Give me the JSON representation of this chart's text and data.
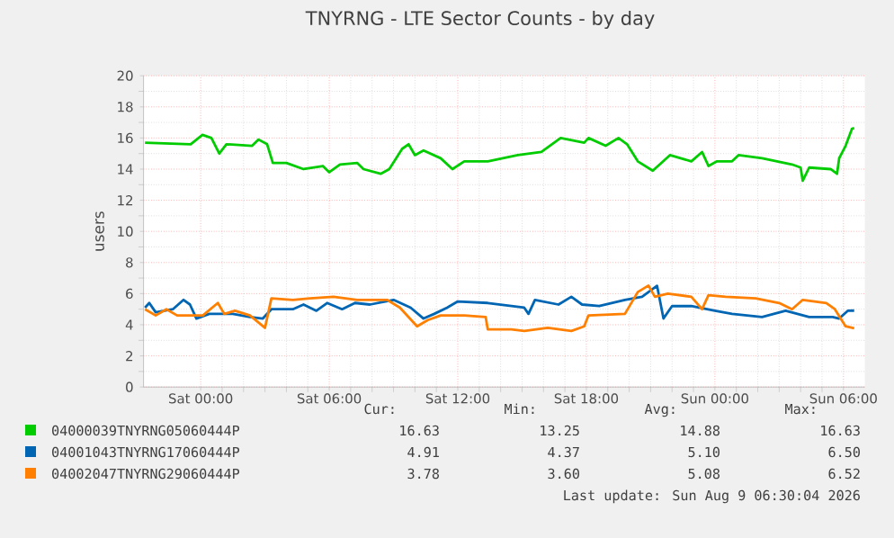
{
  "chart_data": {
    "type": "line",
    "title": "TNYRNG - LTE Sector Counts - by day",
    "ylabel": "users",
    "xlim": [
      "2026-08-07T21:20",
      "2026-08-09T07:00"
    ],
    "ylim": [
      0,
      20
    ],
    "xticks": [
      {
        "value": "2026-08-08T00:00",
        "label": "Sat 00:00"
      },
      {
        "value": "2026-08-08T06:00",
        "label": "Sat 06:00"
      },
      {
        "value": "2026-08-08T12:00",
        "label": "Sat 12:00"
      },
      {
        "value": "2026-08-08T18:00",
        "label": "Sat 18:00"
      },
      {
        "value": "2026-08-09T00:00",
        "label": "Sun 00:00"
      },
      {
        "value": "2026-08-09T06:00",
        "label": "Sun 06:00"
      }
    ],
    "yticks": [
      0,
      2,
      4,
      6,
      8,
      10,
      12,
      14,
      16,
      18,
      20
    ],
    "grid": true,
    "legend": "bottom",
    "marker": "none",
    "line_style": "solid",
    "series": [
      {
        "name": "04000039TNYRNG05060444P",
        "color": "#00cc00",
        "x": [
          "2026-08-07T21:24",
          "2026-08-07T23:32",
          "2026-08-08T00:05",
          "2026-08-08T00:30",
          "2026-08-08T00:52",
          "2026-08-08T01:12",
          "2026-08-08T02:24",
          "2026-08-08T02:42",
          "2026-08-08T03:06",
          "2026-08-08T03:22",
          "2026-08-08T04:00",
          "2026-08-08T04:48",
          "2026-08-08T05:42",
          "2026-08-08T06:00",
          "2026-08-08T06:30",
          "2026-08-08T07:18",
          "2026-08-08T07:36",
          "2026-08-08T08:24",
          "2026-08-08T08:48",
          "2026-08-08T09:24",
          "2026-08-08T09:42",
          "2026-08-08T10:00",
          "2026-08-08T10:24",
          "2026-08-08T11:12",
          "2026-08-08T11:45",
          "2026-08-08T12:18",
          "2026-08-08T13:24",
          "2026-08-08T14:48",
          "2026-08-08T15:54",
          "2026-08-08T16:48",
          "2026-08-08T17:54",
          "2026-08-08T18:06",
          "2026-08-08T18:54",
          "2026-08-08T19:30",
          "2026-08-08T19:54",
          "2026-08-08T20:24",
          "2026-08-08T21:06",
          "2026-08-08T21:54",
          "2026-08-08T22:54",
          "2026-08-08T23:24",
          "2026-08-08T23:42",
          "2026-08-09T00:06",
          "2026-08-09T00:48",
          "2026-08-09T01:06",
          "2026-08-09T02:12",
          "2026-08-09T03:36",
          "2026-08-09T04:00",
          "2026-08-09T04:06",
          "2026-08-09T04:24",
          "2026-08-09T05:24",
          "2026-08-09T05:42",
          "2026-08-09T05:48",
          "2026-08-09T06:06",
          "2026-08-09T06:24",
          "2026-08-09T06:30"
        ],
        "values": [
          15.7,
          15.6,
          16.2,
          16.0,
          15.0,
          15.6,
          15.5,
          15.9,
          15.6,
          14.4,
          14.4,
          14.0,
          14.2,
          13.8,
          14.3,
          14.4,
          14.0,
          13.7,
          14.0,
          15.3,
          15.6,
          14.9,
          15.2,
          14.7,
          14.0,
          14.5,
          14.5,
          14.9,
          15.1,
          16.0,
          15.7,
          16.0,
          15.5,
          16.0,
          15.6,
          14.5,
          13.9,
          14.9,
          14.5,
          15.1,
          14.2,
          14.5,
          14.5,
          14.9,
          14.7,
          14.3,
          14.1,
          13.25,
          14.1,
          14.0,
          13.7,
          14.7,
          15.5,
          16.6,
          16.63
        ]
      },
      {
        "name": "04001043TNYRNG17060444P",
        "color": "#0066b3",
        "x": [
          "2026-08-07T21:24",
          "2026-08-07T21:36",
          "2026-08-07T21:54",
          "2026-08-07T22:42",
          "2026-08-07T23:12",
          "2026-08-07T23:30",
          "2026-08-07T23:48",
          "2026-08-08T00:24",
          "2026-08-08T01:30",
          "2026-08-08T02:18",
          "2026-08-08T02:54",
          "2026-08-08T03:18",
          "2026-08-08T04:18",
          "2026-08-08T04:48",
          "2026-08-08T05:24",
          "2026-08-08T05:54",
          "2026-08-08T06:36",
          "2026-08-08T07:12",
          "2026-08-08T07:54",
          "2026-08-08T09:00",
          "2026-08-08T09:48",
          "2026-08-08T10:24",
          "2026-08-08T10:54",
          "2026-08-08T11:30",
          "2026-08-08T12:00",
          "2026-08-08T13:24",
          "2026-08-08T15:06",
          "2026-08-08T15:18",
          "2026-08-08T15:36",
          "2026-08-08T16:42",
          "2026-08-08T17:18",
          "2026-08-08T17:48",
          "2026-08-08T18:36",
          "2026-08-08T19:48",
          "2026-08-08T20:36",
          "2026-08-08T21:18",
          "2026-08-08T21:36",
          "2026-08-08T22:00",
          "2026-08-08T22:54",
          "2026-08-09T00:00",
          "2026-08-09T00:48",
          "2026-08-09T02:12",
          "2026-08-09T03:18",
          "2026-08-09T04:24",
          "2026-08-09T05:30",
          "2026-08-09T05:48",
          "2026-08-09T06:12",
          "2026-08-09T06:30"
        ],
        "values": [
          5.1,
          5.4,
          4.8,
          5.0,
          5.6,
          5.3,
          4.4,
          4.7,
          4.7,
          4.5,
          4.4,
          5.0,
          5.0,
          5.3,
          4.9,
          5.4,
          5.0,
          5.4,
          5.3,
          5.6,
          5.1,
          4.4,
          4.7,
          5.1,
          5.5,
          5.4,
          5.1,
          4.7,
          5.6,
          5.3,
          5.8,
          5.3,
          5.2,
          5.6,
          5.8,
          6.5,
          4.4,
          5.2,
          5.2,
          4.9,
          4.7,
          4.5,
          4.9,
          4.5,
          4.5,
          4.4,
          4.9,
          4.91
        ]
      },
      {
        "name": "04002047TNYRNG29060444P",
        "color": "#ff8000",
        "x": [
          "2026-08-07T21:24",
          "2026-08-07T21:54",
          "2026-08-07T22:24",
          "2026-08-07T22:54",
          "2026-08-08T00:06",
          "2026-08-08T00:48",
          "2026-08-08T01:06",
          "2026-08-08T01:36",
          "2026-08-08T02:18",
          "2026-08-08T03:00",
          "2026-08-08T03:18",
          "2026-08-08T04:18",
          "2026-08-08T05:06",
          "2026-08-08T06:12",
          "2026-08-08T07:18",
          "2026-08-08T08:42",
          "2026-08-08T09:18",
          "2026-08-08T10:06",
          "2026-08-08T10:36",
          "2026-08-08T11:12",
          "2026-08-08T12:18",
          "2026-08-08T13:18",
          "2026-08-08T13:24",
          "2026-08-08T14:30",
          "2026-08-08T15:06",
          "2026-08-08T16:12",
          "2026-08-08T17:18",
          "2026-08-08T17:54",
          "2026-08-08T18:06",
          "2026-08-08T19:48",
          "2026-08-08T20:24",
          "2026-08-08T20:54",
          "2026-08-08T21:12",
          "2026-08-08T21:48",
          "2026-08-08T22:54",
          "2026-08-08T23:24",
          "2026-08-08T23:42",
          "2026-08-09T00:30",
          "2026-08-09T01:54",
          "2026-08-09T03:00",
          "2026-08-09T03:36",
          "2026-08-09T04:06",
          "2026-08-09T05:12",
          "2026-08-09T05:36",
          "2026-08-09T06:06",
          "2026-08-09T06:30"
        ],
        "values": [
          5.0,
          4.6,
          5.0,
          4.6,
          4.6,
          5.4,
          4.7,
          4.9,
          4.6,
          3.8,
          5.7,
          5.6,
          5.7,
          5.8,
          5.6,
          5.6,
          5.1,
          3.9,
          4.3,
          4.6,
          4.6,
          4.5,
          3.7,
          3.7,
          3.6,
          3.8,
          3.6,
          3.9,
          4.6,
          4.7,
          6.1,
          6.52,
          5.8,
          6.0,
          5.8,
          5.0,
          5.9,
          5.8,
          5.7,
          5.4,
          5.0,
          5.6,
          5.4,
          5.0,
          3.9,
          3.78
        ]
      }
    ],
    "annotations": [
      "Cur:",
      "Min:",
      "Avg:",
      "Max:",
      "16.63",
      "13.25",
      "14.88",
      "16.63",
      "4.91",
      "4.37",
      "5.10",
      "6.50",
      "3.78",
      "3.60",
      "5.08",
      "6.52",
      "Last update: Sun Aug  9 06:30:04 2026"
    ]
  }
}
